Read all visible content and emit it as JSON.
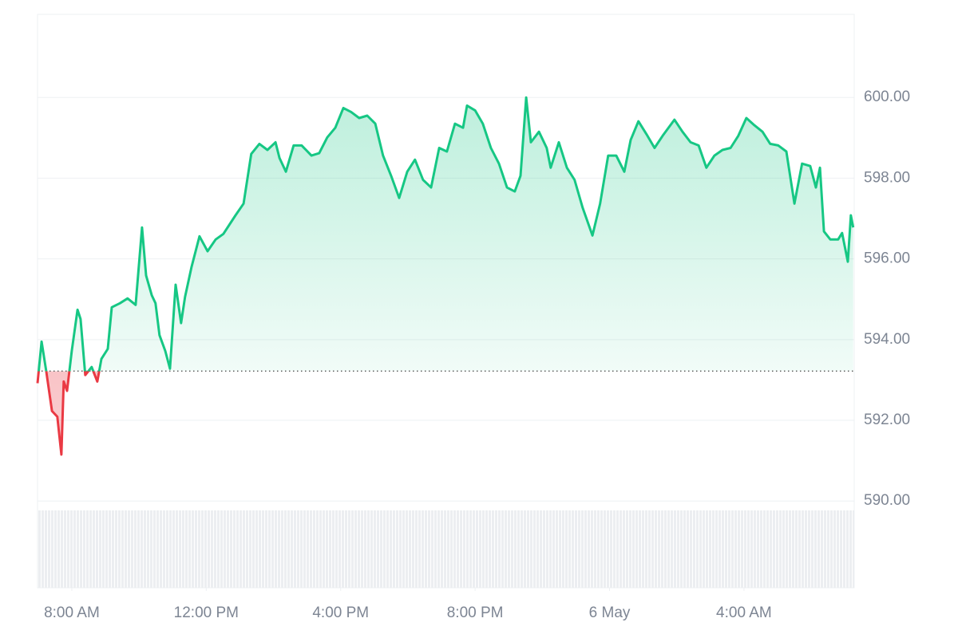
{
  "chart_data": {
    "type": "line",
    "x": [
      6.98,
      7.1,
      7.24,
      7.41,
      7.57,
      7.69,
      7.76,
      7.86,
      8.0,
      8.17,
      8.26,
      8.4,
      8.59,
      8.76,
      8.88,
      9.07,
      9.19,
      9.43,
      9.66,
      9.9,
      10.09,
      10.21,
      10.38,
      10.49,
      10.61,
      10.78,
      10.92,
      11.09,
      11.25,
      11.37,
      11.56,
      11.8,
      12.04,
      12.28,
      12.51,
      12.87,
      13.11,
      13.34,
      13.58,
      13.82,
      14.06,
      14.18,
      14.37,
      14.6,
      14.84,
      15.13,
      15.36,
      15.6,
      15.84,
      16.08,
      16.31,
      16.55,
      16.79,
      17.03,
      17.26,
      17.5,
      17.74,
      17.98,
      18.21,
      18.45,
      18.69,
      18.93,
      19.16,
      19.4,
      19.64,
      19.76,
      20.0,
      20.23,
      20.47,
      20.71,
      20.95,
      21.18,
      21.35,
      21.52,
      21.66,
      21.9,
      22.13,
      22.25,
      22.49,
      22.73,
      22.96,
      23.2,
      23.49,
      23.72,
      23.96,
      24.2,
      24.44,
      24.63,
      24.86,
      25.1,
      25.34,
      25.58,
      25.93,
      26.17,
      26.41,
      26.65,
      26.88,
      27.12,
      27.36,
      27.6,
      27.83,
      28.07,
      28.31,
      28.55,
      28.78,
      29.02,
      29.26,
      29.5,
      29.73,
      29.97,
      30.14,
      30.26,
      30.38,
      30.57,
      30.8,
      30.92,
      31.09,
      31.18,
      31.25
    ],
    "values": [
      592.92,
      593.95,
      593.22,
      592.23,
      592.09,
      591.15,
      592.96,
      592.73,
      593.72,
      594.74,
      594.51,
      593.12,
      593.32,
      592.96,
      593.52,
      593.77,
      594.8,
      594.9,
      595.02,
      594.86,
      596.78,
      595.59,
      595.1,
      594.9,
      594.11,
      593.72,
      593.28,
      595.36,
      594.41,
      595.06,
      595.79,
      596.56,
      596.19,
      596.48,
      596.62,
      597.08,
      597.37,
      598.6,
      598.85,
      598.7,
      598.89,
      598.5,
      598.16,
      598.81,
      598.81,
      598.56,
      598.62,
      599.01,
      599.25,
      599.74,
      599.64,
      599.49,
      599.55,
      599.35,
      598.56,
      598.06,
      597.51,
      598.16,
      598.46,
      597.96,
      597.77,
      598.75,
      598.66,
      599.35,
      599.25,
      599.8,
      599.68,
      599.35,
      598.75,
      598.36,
      597.77,
      597.67,
      598.06,
      600.0,
      598.89,
      599.15,
      598.75,
      598.26,
      598.89,
      598.26,
      597.96,
      597.27,
      596.58,
      597.37,
      598.56,
      598.56,
      598.16,
      598.95,
      599.41,
      599.09,
      598.75,
      599.05,
      599.45,
      599.15,
      598.89,
      598.81,
      598.26,
      598.56,
      598.7,
      598.75,
      599.05,
      599.49,
      599.31,
      599.15,
      598.85,
      598.81,
      598.66,
      597.37,
      598.36,
      598.3,
      597.77,
      598.26,
      596.68,
      596.48,
      596.48,
      596.64,
      595.93,
      597.08,
      596.78
    ],
    "baseline": 593.22,
    "color_up": "#16c784",
    "color_down": "#ea3943",
    "xlim": [
      6.98,
      31.28
    ],
    "xticks": [
      {
        "value": 8,
        "label": "8:00 AM"
      },
      {
        "value": 12,
        "label": "12:00 PM"
      },
      {
        "value": 16,
        "label": "4:00 PM"
      },
      {
        "value": 20,
        "label": "8:00 PM"
      },
      {
        "value": 24,
        "label": "6 May"
      },
      {
        "value": 28,
        "label": "4:00 AM"
      }
    ],
    "ylim": [
      587.85,
      602.06
    ],
    "yticks": [
      {
        "value": 590,
        "label": "590.00"
      },
      {
        "value": 592,
        "label": "592.00"
      },
      {
        "value": 594,
        "label": "594.00"
      },
      {
        "value": 596,
        "label": "596.00"
      },
      {
        "value": 598,
        "label": "598.00"
      },
      {
        "value": 600,
        "label": "600.00"
      }
    ],
    "grid": true
  }
}
